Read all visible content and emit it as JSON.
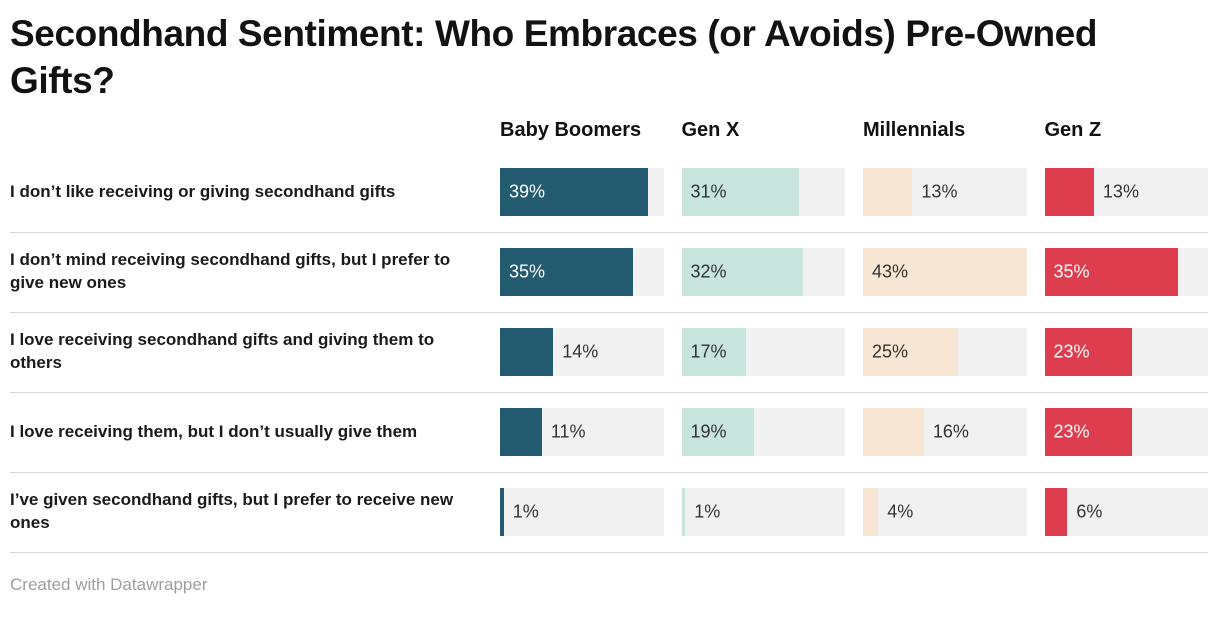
{
  "title": "Secondhand Sentiment: Who Embraces (or Avoids) Pre-Owned Gifts?",
  "footer": "Created with Datawrapper",
  "chart_data": {
    "type": "bar",
    "variant": "split-bars-by-group",
    "title": "Secondhand Sentiment: Who Embraces (or Avoids) Pre-Owned Gifts?",
    "categories": [
      "I don’t like receiving or giving secondhand gifts",
      "I don’t mind receiving secondhand gifts, but I prefer to give new ones",
      "I love receiving secondhand gifts and giving them to others",
      "I love receiving them, but I don’t usually give them",
      "I’ve given secondhand gifts, but I prefer to receive new ones"
    ],
    "series": [
      {
        "name": "Baby Boomers",
        "color": "#235c71",
        "inside_label_color": "#ffffff",
        "values": [
          39,
          35,
          14,
          11,
          1
        ]
      },
      {
        "name": "Gen X",
        "color": "#c7e5dd",
        "inside_label_color": "#333333",
        "values": [
          31,
          32,
          17,
          19,
          1
        ]
      },
      {
        "name": "Millennials",
        "color": "#f8e6d4",
        "inside_label_color": "#333333",
        "values": [
          13,
          43,
          25,
          16,
          4
        ]
      },
      {
        "name": "Gen Z",
        "color": "#dd3d4d",
        "inside_label_color": "#ffffff",
        "values": [
          13,
          35,
          23,
          23,
          6
        ]
      }
    ],
    "value_suffix": "%",
    "xmax": 43,
    "inside_label_min": 17,
    "outside_label_color": "#333333",
    "track_color": "#f1f1f1",
    "grid": false,
    "legend_position": "column-headers"
  }
}
